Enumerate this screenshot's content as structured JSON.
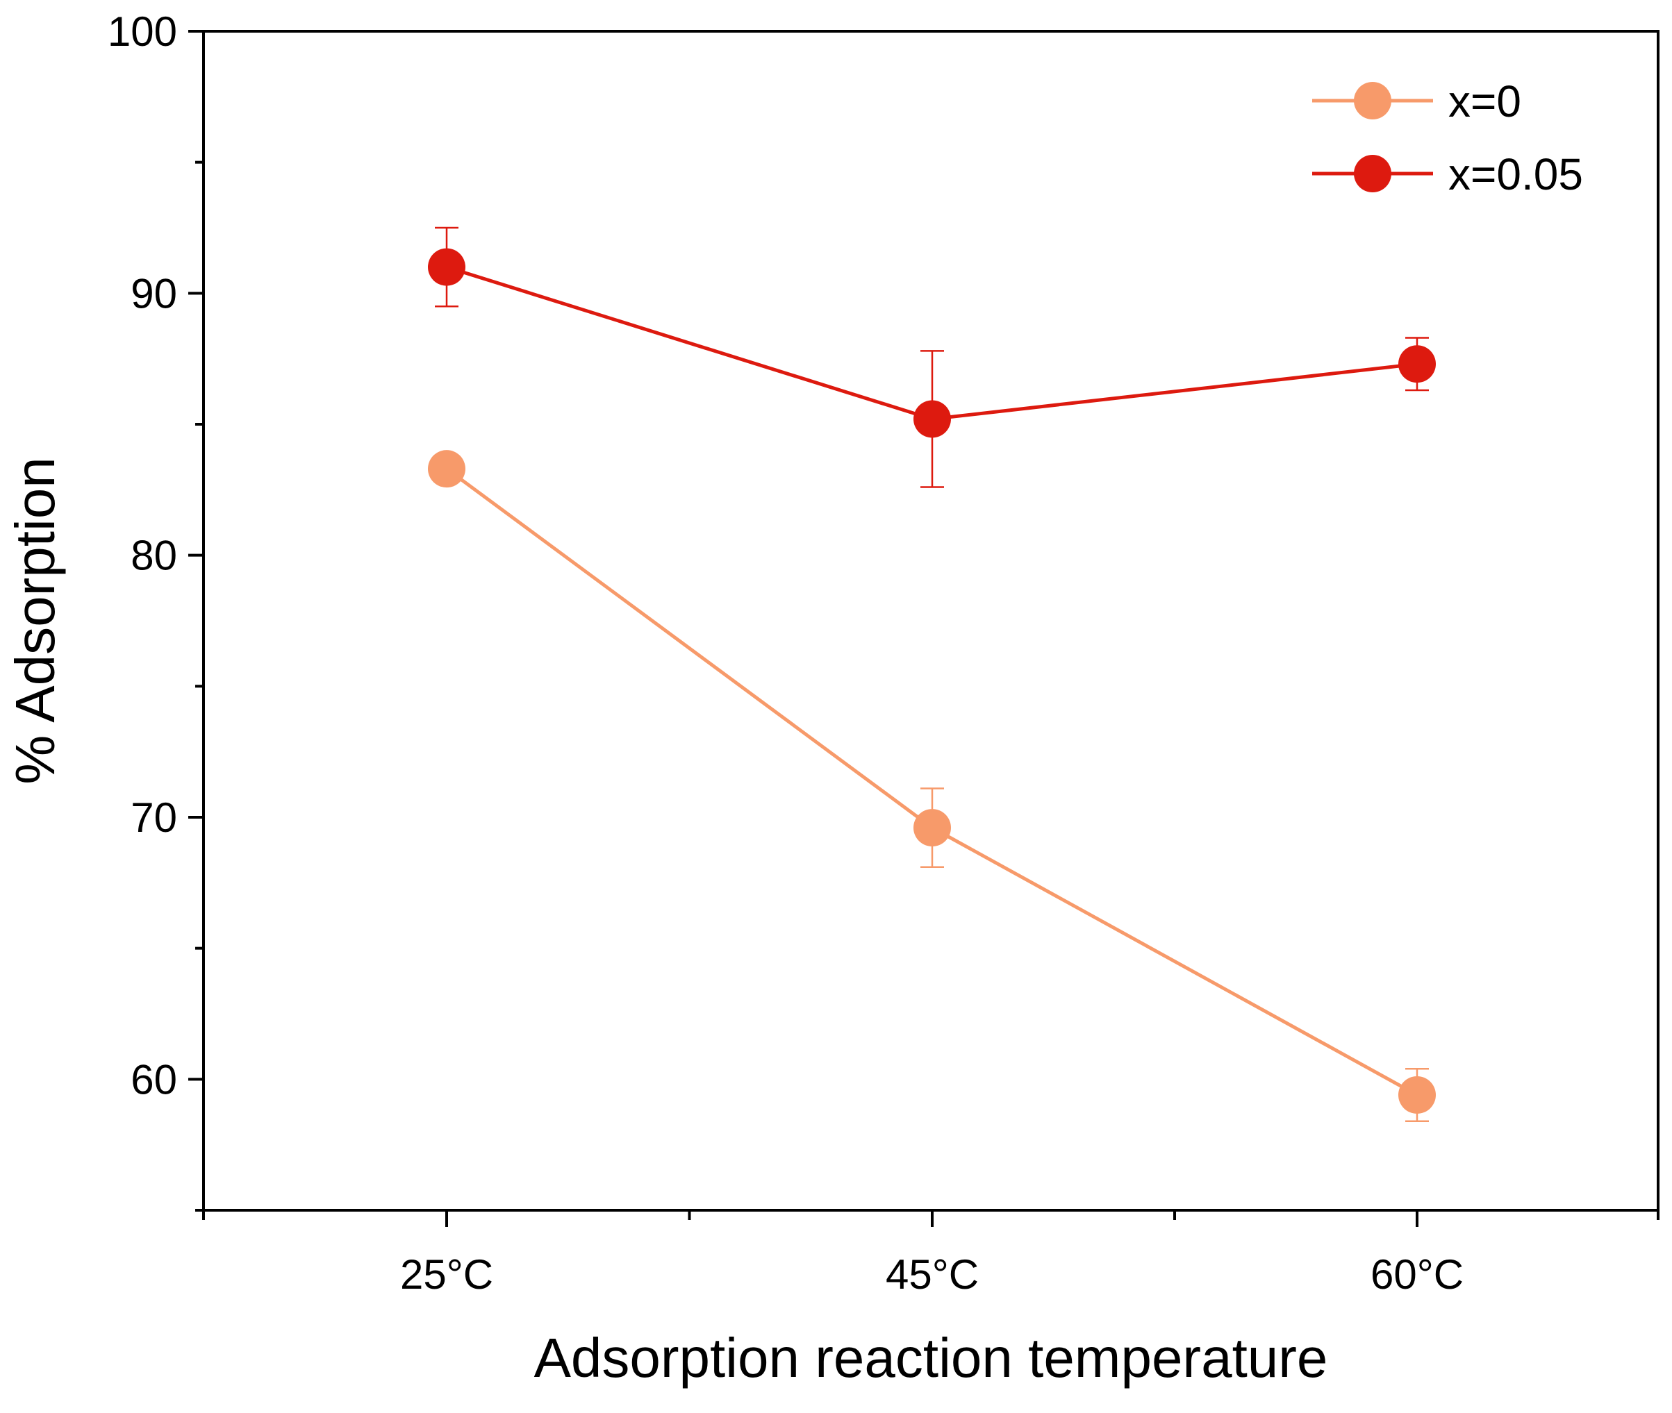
{
  "chart_data": {
    "type": "line",
    "title": "",
    "xlabel": "Adsorption reaction temperature",
    "ylabel": "% Adsorption",
    "categories": [
      "25°C",
      "45°C",
      "60°C"
    ],
    "ylim": [
      55,
      100
    ],
    "yticks": [
      60,
      70,
      80,
      90,
      100
    ],
    "grid": false,
    "legend_position": "top-right",
    "series": [
      {
        "name": "x=0",
        "color": "#F79A6A",
        "values": [
          83.3,
          69.6,
          59.4
        ],
        "errors": [
          0.0,
          1.5,
          1.0
        ]
      },
      {
        "name": "x=0.05",
        "color": "#DD1A0F",
        "values": [
          91.0,
          85.2,
          87.3
        ],
        "errors": [
          1.5,
          2.6,
          1.0
        ]
      }
    ]
  }
}
